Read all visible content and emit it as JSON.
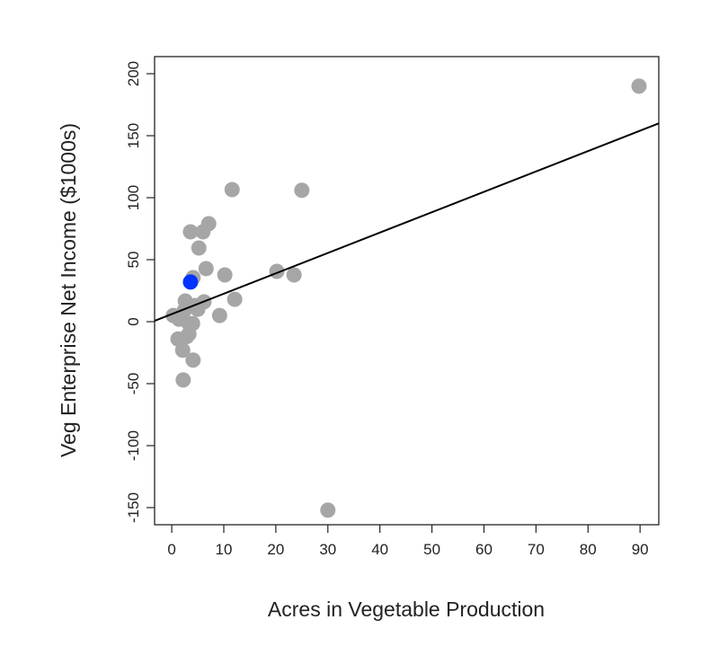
{
  "chart_data": {
    "type": "scatter",
    "title": "",
    "xlabel": "Acres in Vegetable Production",
    "ylabel": "Veg Enterprise Net Income ($1000s)",
    "xlim": [
      -3.3,
      93.6
    ],
    "ylim": [
      -163.8,
      213.8
    ],
    "xticks": [
      0,
      10,
      20,
      30,
      40,
      50,
      60,
      70,
      80,
      90
    ],
    "yticks": [
      -150,
      -100,
      -50,
      0,
      50,
      100,
      150,
      200
    ],
    "grid": false,
    "colors": {
      "points": "#a6a6a6",
      "highlight": "#0033ff",
      "line": "#000000"
    },
    "points": [
      {
        "x": 89.8,
        "y": 190
      },
      {
        "x": 11.6,
        "y": 106.5
      },
      {
        "x": 25,
        "y": 106
      },
      {
        "x": 3.6,
        "y": 72.5
      },
      {
        "x": 7.1,
        "y": 79
      },
      {
        "x": 6,
        "y": 72.5
      },
      {
        "x": 5.2,
        "y": 59.4
      },
      {
        "x": 6.6,
        "y": 42.8
      },
      {
        "x": 10.2,
        "y": 37.7
      },
      {
        "x": 4.1,
        "y": 35.5
      },
      {
        "x": 20.2,
        "y": 40.6
      },
      {
        "x": 23.5,
        "y": 37.7
      },
      {
        "x": 12.1,
        "y": 18
      },
      {
        "x": 9.2,
        "y": 5
      },
      {
        "x": 2.6,
        "y": 16.7
      },
      {
        "x": 6.2,
        "y": 16
      },
      {
        "x": 0.3,
        "y": 5
      },
      {
        "x": 1.4,
        "y": 2
      },
      {
        "x": 3.3,
        "y": -1.5
      },
      {
        "x": 4,
        "y": -1.5
      },
      {
        "x": 3.3,
        "y": -10
      },
      {
        "x": 2.9,
        "y": -12
      },
      {
        "x": 1.2,
        "y": -14
      },
      {
        "x": 2.1,
        "y": -23
      },
      {
        "x": 4.1,
        "y": -31
      },
      {
        "x": 2.2,
        "y": -47
      },
      {
        "x": 30,
        "y": -152
      },
      {
        "x": 5,
        "y": 10
      },
      {
        "x": 2.4,
        "y": 9
      },
      {
        "x": 4.5,
        "y": 13
      }
    ],
    "highlight_point": {
      "x": 3.6,
      "y": 32
    },
    "regression_line": {
      "intercept": 6.1,
      "slope": 1.644
    }
  }
}
